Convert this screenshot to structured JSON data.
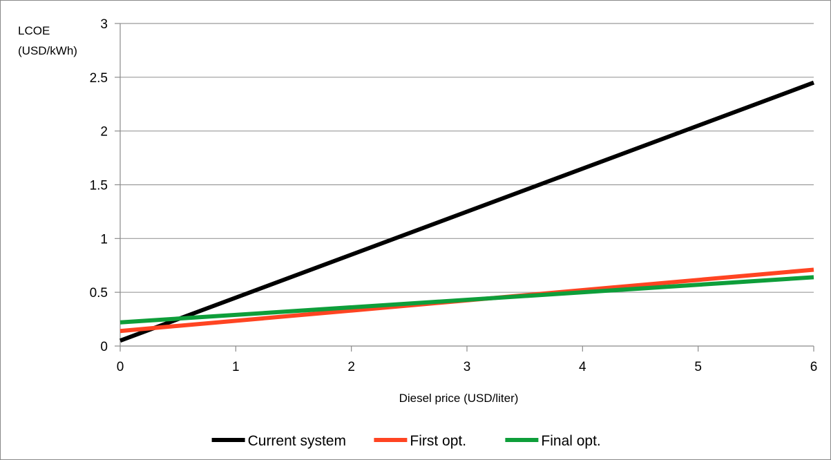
{
  "chart_data": {
    "type": "line",
    "xlabel": "Diesel price (USD/liter)",
    "ylabel_lines": [
      "LCOE",
      "(USD/kWh)"
    ],
    "xlim": [
      0,
      6
    ],
    "ylim": [
      0,
      3
    ],
    "x_ticks": [
      0,
      1,
      2,
      3,
      4,
      5,
      6
    ],
    "y_ticks": [
      0,
      0.5,
      1,
      1.5,
      2,
      2.5,
      3
    ],
    "grid": "horizontal",
    "legend_position": "bottom",
    "series": [
      {
        "name": "Current system",
        "color": "#000000",
        "x": [
          0,
          6
        ],
        "y": [
          0.05,
          2.45
        ]
      },
      {
        "name": "First opt.",
        "color": "#FF4422",
        "x": [
          0,
          6
        ],
        "y": [
          0.14,
          0.71
        ]
      },
      {
        "name": "Final opt.",
        "color": "#0E9E3A",
        "x": [
          0,
          6
        ],
        "y": [
          0.22,
          0.64
        ]
      }
    ]
  }
}
